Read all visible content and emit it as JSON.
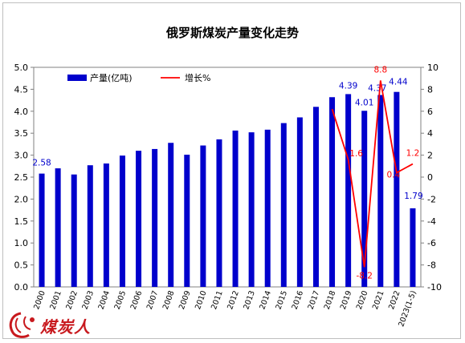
{
  "chart_data": {
    "type": "bar+line",
    "title": "俄罗斯煤炭产量变化走势",
    "categories": [
      "2000",
      "2001",
      "2002",
      "2003",
      "2004",
      "2005",
      "2006",
      "2007",
      "2008",
      "2009",
      "2010",
      "2011",
      "2012",
      "2013",
      "2014",
      "2015",
      "2016",
      "2017",
      "2018",
      "2019",
      "2020",
      "2021",
      "2022",
      "2023(1-5)"
    ],
    "series": [
      {
        "name": "产量(亿吨)",
        "type": "bar",
        "axis": "left",
        "color": "#0000cc",
        "values": [
          2.58,
          2.7,
          2.56,
          2.77,
          2.81,
          2.99,
          3.1,
          3.14,
          3.28,
          3.01,
          3.22,
          3.36,
          3.56,
          3.52,
          3.58,
          3.73,
          3.86,
          4.1,
          4.32,
          4.39,
          4.01,
          4.37,
          4.44,
          1.79
        ],
        "labels": {
          "0": "2.58",
          "19": "4.39",
          "20": "4.01",
          "21": "4.37",
          "22": "4.44",
          "23": "1.79"
        }
      },
      {
        "name": "增长%",
        "type": "line",
        "axis": "right",
        "color": "#ff0000",
        "points": [
          {
            "x": "2018",
            "y": 6.2
          },
          {
            "x": "2019",
            "y": 1.6
          },
          {
            "x": "2020",
            "y": -8.2
          },
          {
            "x": "2021",
            "y": 8.8
          },
          {
            "x": "2022",
            "y": 0.4
          },
          {
            "x": "2023(1-5)",
            "y": 1.2
          }
        ],
        "labels": {
          "2019": "1.6",
          "2020": "-8.2",
          "2021": "8.8",
          "2022": "0.4",
          "2023(1-5)": "1.2"
        }
      }
    ],
    "y_left": {
      "min": 0,
      "max": 5,
      "step": 0.5,
      "ticks": [
        "0.0",
        "0.5",
        "1.0",
        "1.5",
        "2.0",
        "2.5",
        "3.0",
        "3.5",
        "4.0",
        "4.5",
        "5.0"
      ]
    },
    "y_right": {
      "min": -10,
      "max": 10,
      "step": 2,
      "ticks": [
        "-10",
        "-8",
        "-6",
        "-4",
        "-2",
        "0",
        "2",
        "4",
        "6",
        "8",
        "10"
      ]
    },
    "grid": false,
    "legend_position": "top-left"
  },
  "watermark": {
    "text": "煤炭人"
  },
  "colors": {
    "bar": "#0000cc",
    "line": "#ff0000",
    "bar_label": "#0000cc",
    "line_label": "#ff0000"
  }
}
